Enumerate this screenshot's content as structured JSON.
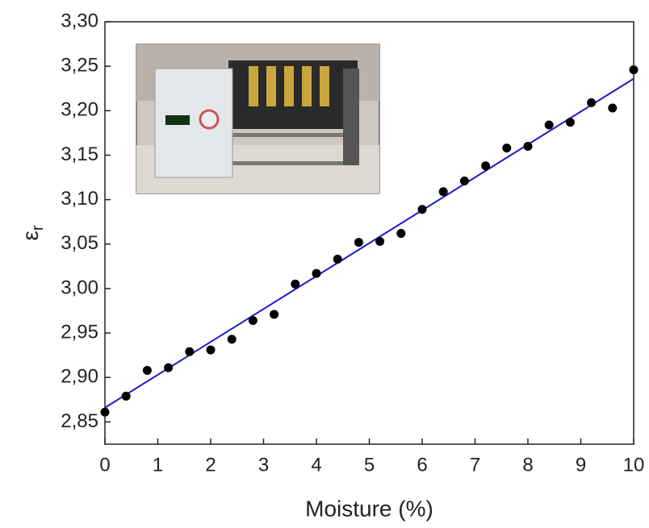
{
  "chart_data": {
    "type": "scatter",
    "xlabel": "Moisture (%)",
    "ylabel": {
      "symbol": "ε",
      "subscript": "r"
    },
    "x": [
      0,
      0.4,
      0.8,
      1.2,
      1.6,
      2.0,
      2.4,
      2.8,
      3.2,
      3.6,
      4.0,
      4.4,
      4.8,
      5.2,
      5.6,
      6.0,
      6.4,
      6.8,
      7.2,
      7.6,
      8.0,
      8.4,
      8.8,
      9.2,
      9.6,
      10.0
    ],
    "values": [
      2.861,
      2.879,
      2.908,
      2.911,
      2.929,
      2.931,
      2.943,
      2.964,
      2.971,
      3.005,
      3.017,
      3.033,
      3.052,
      3.053,
      3.062,
      3.089,
      3.109,
      3.121,
      3.138,
      3.158,
      3.16,
      3.184,
      3.187,
      3.209,
      3.203,
      3.246
    ],
    "color": "#000000",
    "fit": {
      "x": [
        0,
        10
      ],
      "values": [
        2.866,
        3.236
      ],
      "color": "#1a1ad0"
    },
    "xlim": [
      0,
      10
    ],
    "xticks": [
      0,
      1,
      2,
      3,
      4,
      5,
      6,
      7,
      8,
      9,
      10
    ],
    "ylim": [
      2.825,
      3.3
    ],
    "yticks": [
      {
        "value": 2.85,
        "label": "2,85"
      },
      {
        "value": 2.9,
        "label": "2,90"
      },
      {
        "value": 2.95,
        "label": "2,95"
      },
      {
        "value": 3.0,
        "label": "3,00"
      },
      {
        "value": 3.05,
        "label": "3,05"
      },
      {
        "value": 3.1,
        "label": "3,10"
      },
      {
        "value": 3.15,
        "label": "3,15"
      },
      {
        "value": 3.2,
        "label": "3,20"
      },
      {
        "value": 3.25,
        "label": "3,25"
      },
      {
        "value": 3.3,
        "label": "3,30"
      }
    ],
    "grid": false
  }
}
